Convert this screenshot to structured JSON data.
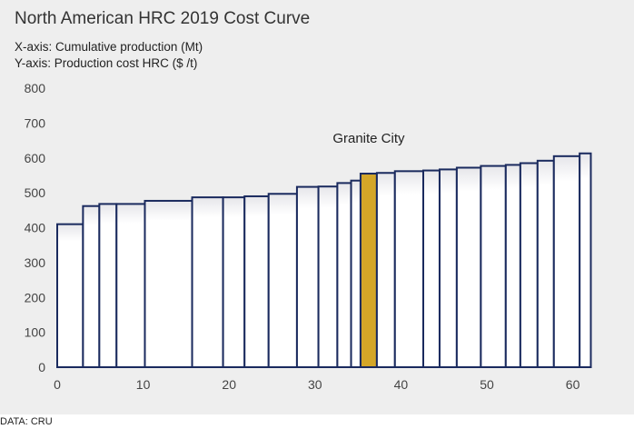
{
  "chart_data": {
    "type": "bar",
    "title": "North American HRC 2019 Cost Curve",
    "subtitle_x": "X-axis: Cumulative production (Mt)",
    "subtitle_y": "Y-axis: Production cost HRC ($ /t)",
    "xlim": [
      0,
      63
    ],
    "ylim": [
      0,
      800
    ],
    "xticks": [
      0,
      10,
      20,
      30,
      40,
      50,
      60
    ],
    "yticks": [
      0,
      100,
      200,
      300,
      400,
      500,
      600,
      700,
      800
    ],
    "annotation": "Granite City",
    "highlight_color": "#d4a628",
    "bar_color": "#ffffff",
    "bar_edge_color": "#1a2a5e",
    "bars": [
      {
        "x0": 0.0,
        "x1": 3.0,
        "cost": 410
      },
      {
        "x0": 3.0,
        "x1": 4.9,
        "cost": 462
      },
      {
        "x0": 4.9,
        "x1": 6.9,
        "cost": 468
      },
      {
        "x0": 6.9,
        "x1": 10.2,
        "cost": 468
      },
      {
        "x0": 10.2,
        "x1": 15.7,
        "cost": 477
      },
      {
        "x0": 15.7,
        "x1": 19.3,
        "cost": 487
      },
      {
        "x0": 19.3,
        "x1": 21.8,
        "cost": 487
      },
      {
        "x0": 21.8,
        "x1": 24.6,
        "cost": 490
      },
      {
        "x0": 24.6,
        "x1": 27.9,
        "cost": 497
      },
      {
        "x0": 27.9,
        "x1": 30.4,
        "cost": 517
      },
      {
        "x0": 30.4,
        "x1": 32.6,
        "cost": 518
      },
      {
        "x0": 32.6,
        "x1": 34.2,
        "cost": 528
      },
      {
        "x0": 34.2,
        "x1": 35.3,
        "cost": 535
      },
      {
        "x0": 35.3,
        "x1": 37.2,
        "cost": 555,
        "highlight": true
      },
      {
        "x0": 37.2,
        "x1": 39.3,
        "cost": 557
      },
      {
        "x0": 39.3,
        "x1": 42.6,
        "cost": 562
      },
      {
        "x0": 42.6,
        "x1": 44.5,
        "cost": 564
      },
      {
        "x0": 44.5,
        "x1": 46.5,
        "cost": 567
      },
      {
        "x0": 46.5,
        "x1": 49.3,
        "cost": 572
      },
      {
        "x0": 49.3,
        "x1": 52.2,
        "cost": 577
      },
      {
        "x0": 52.2,
        "x1": 53.9,
        "cost": 580
      },
      {
        "x0": 53.9,
        "x1": 55.9,
        "cost": 585
      },
      {
        "x0": 55.9,
        "x1": 57.8,
        "cost": 592
      },
      {
        "x0": 57.8,
        "x1": 60.8,
        "cost": 605
      },
      {
        "x0": 60.8,
        "x1": 62.1,
        "cost": 613
      }
    ],
    "source": "DATA: CRU"
  }
}
